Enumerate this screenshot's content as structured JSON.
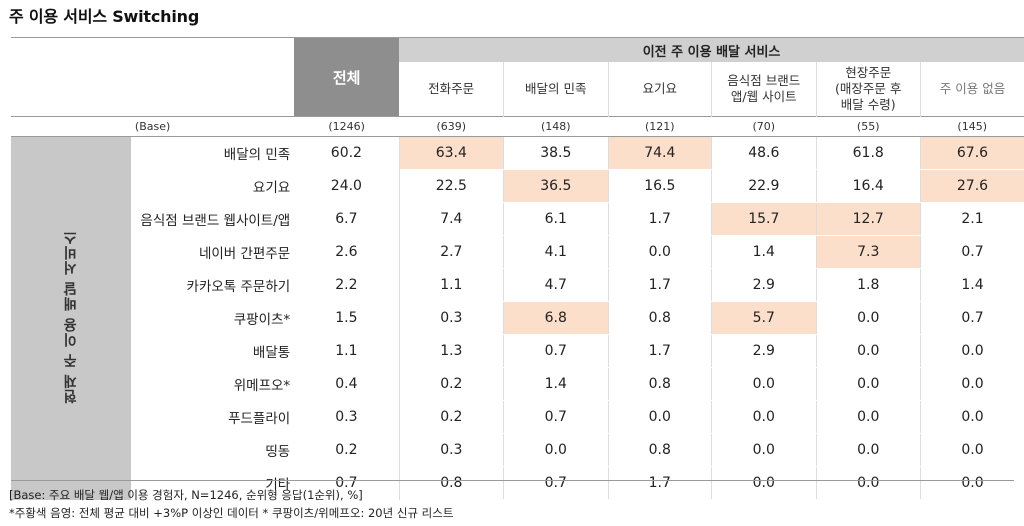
{
  "title": "주 이용 서비스 Switching",
  "header": {
    "total_label": "전체",
    "group_label": "이전 주 이용 배달 서비스",
    "side_label": "현재 주 이용 배달 서비스",
    "base_label": "(Base)"
  },
  "columns": [
    {
      "label": "전화주문",
      "base": "(639)"
    },
    {
      "label": "배달의 민족",
      "base": "(148)"
    },
    {
      "label": "요기요",
      "base": "(121)"
    },
    {
      "label": "음식점 브랜드\n앱/웹 사이트",
      "base": "(70)"
    },
    {
      "label": "현장주문\n(매장주문 후\n배달 수령)",
      "base": "(55)"
    },
    {
      "label": "주 이용 없음",
      "base": "(145)"
    }
  ],
  "total_base": "(1246)",
  "rows": [
    {
      "label": "배달의 민족",
      "total": "60.2",
      "values": [
        "63.4",
        "38.5",
        "74.4",
        "48.6",
        "61.8",
        "67.6"
      ],
      "highlight": [
        true,
        false,
        true,
        false,
        false,
        true
      ]
    },
    {
      "label": "요기요",
      "total": "24.0",
      "values": [
        "22.5",
        "36.5",
        "16.5",
        "22.9",
        "16.4",
        "27.6"
      ],
      "highlight": [
        false,
        true,
        false,
        false,
        false,
        true
      ]
    },
    {
      "label": "음식점 브랜드 웹사이트/앱",
      "total": "6.7",
      "values": [
        "7.4",
        "6.1",
        "1.7",
        "15.7",
        "12.7",
        "2.1"
      ],
      "highlight": [
        false,
        false,
        false,
        true,
        true,
        false
      ]
    },
    {
      "label": "네이버 간편주문",
      "total": "2.6",
      "values": [
        "2.7",
        "4.1",
        "0.0",
        "1.4",
        "7.3",
        "0.7"
      ],
      "highlight": [
        false,
        false,
        false,
        false,
        true,
        false
      ]
    },
    {
      "label": "카카오톡 주문하기",
      "total": "2.2",
      "values": [
        "1.1",
        "4.7",
        "1.7",
        "2.9",
        "1.8",
        "1.4"
      ],
      "highlight": [
        false,
        false,
        false,
        false,
        false,
        false
      ]
    },
    {
      "label": "쿠팡이츠*",
      "total": "1.5",
      "values": [
        "0.3",
        "6.8",
        "0.8",
        "5.7",
        "0.0",
        "0.7"
      ],
      "highlight": [
        false,
        true,
        false,
        true,
        false,
        false
      ]
    },
    {
      "label": "배달통",
      "total": "1.1",
      "values": [
        "1.3",
        "0.7",
        "1.7",
        "2.9",
        "0.0",
        "0.0"
      ],
      "highlight": [
        false,
        false,
        false,
        false,
        false,
        false
      ]
    },
    {
      "label": "위메프오*",
      "total": "0.4",
      "values": [
        "0.2",
        "1.4",
        "0.8",
        "0.0",
        "0.0",
        "0.0"
      ],
      "highlight": [
        false,
        false,
        false,
        false,
        false,
        false
      ]
    },
    {
      "label": "푸드플라이",
      "total": "0.3",
      "values": [
        "0.2",
        "0.7",
        "0.0",
        "0.0",
        "0.0",
        "0.0"
      ],
      "highlight": [
        false,
        false,
        false,
        false,
        false,
        false
      ]
    },
    {
      "label": "띵동",
      "total": "0.2",
      "values": [
        "0.3",
        "0.0",
        "0.8",
        "0.0",
        "0.0",
        "0.0"
      ],
      "highlight": [
        false,
        false,
        false,
        false,
        false,
        false
      ]
    },
    {
      "label": "기타",
      "total": "0.7",
      "values": [
        "0.8",
        "0.7",
        "1.7",
        "0.0",
        "0.0",
        "0.0"
      ],
      "highlight": [
        false,
        false,
        false,
        false,
        false,
        false
      ]
    }
  ],
  "footnotes": [
    "[Base: 주요 배달 웹/앱 이용 경험자, N=1246, 순위형 응답(1순위), %]",
    "*주황색 음영: 전체 평균 대비 +3%P 이상인 데이터 * 쿠팡이츠/위메프오: 20년 신규 리스트"
  ],
  "colors": {
    "highlight": "#fbdfcb",
    "total_header": "#8e8e8e",
    "group_header": "#d0d0d0",
    "side_bar": "#c8c8c8"
  }
}
